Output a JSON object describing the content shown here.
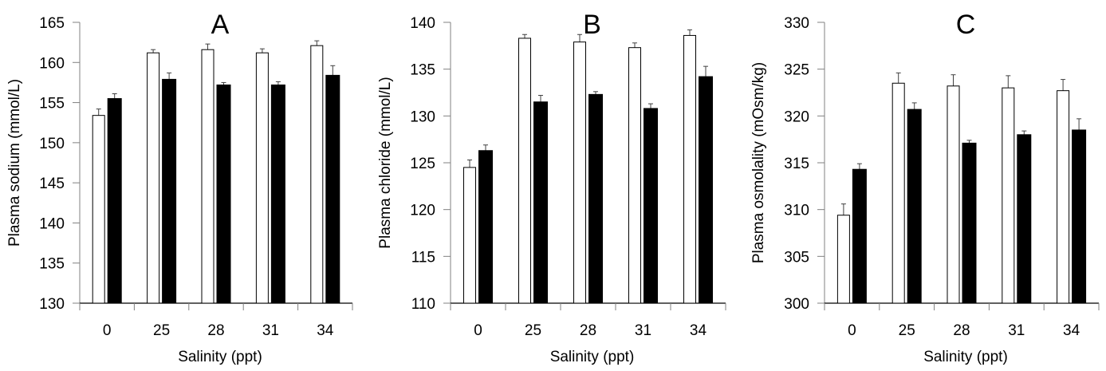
{
  "chart_data": [
    {
      "type": "bar",
      "title": "A",
      "xlabel": "Salinity (ppt)",
      "ylabel": "Plasma sodium (mmol/L)",
      "categories": [
        "0",
        "25",
        "28",
        "31",
        "34"
      ],
      "ylim": [
        130,
        165
      ],
      "yticks": [
        "130",
        "135",
        "140",
        "145",
        "150",
        "155",
        "160",
        "165"
      ],
      "grid": false,
      "series": [
        {
          "color": "#ffffff",
          "values": [
            153.4,
            161.2,
            161.6,
            161.2,
            162.1
          ],
          "errors": [
            0.8,
            0.4,
            0.7,
            0.5,
            0.6
          ]
        },
        {
          "color": "#000000",
          "values": [
            155.5,
            157.9,
            157.2,
            157.2,
            158.4
          ],
          "errors": [
            0.6,
            0.8,
            0.3,
            0.4,
            1.2
          ]
        }
      ]
    },
    {
      "type": "bar",
      "title": "B",
      "xlabel": "Salinity (ppt)",
      "ylabel": "Plasma chloride (mmol/L)",
      "categories": [
        "0",
        "25",
        "28",
        "31",
        "34"
      ],
      "ylim": [
        110,
        140
      ],
      "yticks": [
        "110",
        "115",
        "120",
        "125",
        "130",
        "135",
        "140"
      ],
      "grid": false,
      "series": [
        {
          "color": "#ffffff",
          "values": [
            124.5,
            138.3,
            137.9,
            137.3,
            138.6
          ],
          "errors": [
            0.8,
            0.4,
            0.8,
            0.5,
            0.6
          ]
        },
        {
          "color": "#000000",
          "values": [
            126.3,
            131.5,
            132.3,
            130.8,
            134.2
          ],
          "errors": [
            0.6,
            0.7,
            0.3,
            0.5,
            1.1
          ]
        }
      ]
    },
    {
      "type": "bar",
      "title": "C",
      "xlabel": "Salinity (ppt)",
      "ylabel": "Plasma osmolality (mOsm/kg)",
      "categories": [
        "0",
        "25",
        "28",
        "31",
        "34"
      ],
      "ylim": [
        300,
        330
      ],
      "yticks": [
        "300",
        "305",
        "310",
        "315",
        "320",
        "325",
        "330"
      ],
      "grid": false,
      "series": [
        {
          "color": "#ffffff",
          "values": [
            309.4,
            323.5,
            323.2,
            323.0,
            322.7
          ],
          "errors": [
            1.2,
            1.1,
            1.2,
            1.3,
            1.2
          ]
        },
        {
          "color": "#000000",
          "values": [
            314.3,
            320.7,
            317.1,
            318.0,
            318.5
          ],
          "errors": [
            0.6,
            0.7,
            0.3,
            0.4,
            1.2
          ]
        }
      ]
    }
  ]
}
